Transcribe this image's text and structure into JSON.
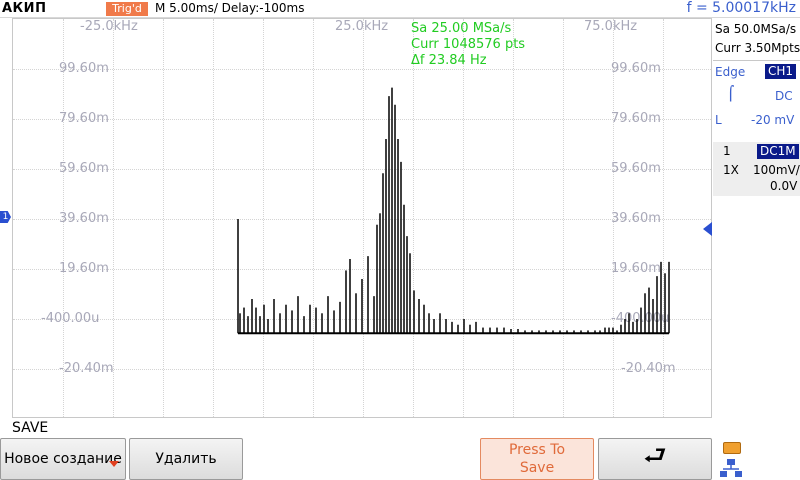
{
  "header": {
    "brand": "АКИП",
    "trig_status": "Trig'd",
    "timebase": "M 5.00ms/ Delay:-100ms",
    "frequency": "f = 5.00017kHz"
  },
  "plot": {
    "x_labels": [
      "-25.0kHz",
      "25.0kHz",
      "75.0kHz"
    ],
    "y_labels_left": [
      "99.60m",
      "79.60m",
      "59.60m",
      "39.60m",
      "19.60m",
      "-400.00u",
      "-20.40m"
    ],
    "y_labels_right": [
      "99.60m",
      "79.60m",
      "59.60m",
      "39.60m",
      "19.60m",
      "-400.00u",
      "-20.40m"
    ],
    "info": {
      "sample_rate": "Sa 25.00 MSa/s",
      "current_points": "Curr 1048576 pts",
      "delta_f": "Δf 23.84 Hz"
    },
    "channel_marker": "1",
    "trace_color": "#000000",
    "info_color": "#22cc22"
  },
  "chart_data": {
    "type": "bar",
    "description_free": true,
    "x_unit": "kHz",
    "xlim": [
      -45.0,
      95.0
    ],
    "ylim": [
      -30.4,
      109.6
    ],
    "y_unit": "m",
    "baseline": -0.4,
    "values": [
      {
        "x": 0.0,
        "y": 39.6
      },
      {
        "x": 0.4,
        "y": 6.6
      },
      {
        "x": 1.2,
        "y": 8.6
      },
      {
        "x": 2.0,
        "y": 5.6
      },
      {
        "x": 2.8,
        "y": 11.6
      },
      {
        "x": 3.6,
        "y": 8.6
      },
      {
        "x": 4.4,
        "y": 5.6
      },
      {
        "x": 5.2,
        "y": 9.6
      },
      {
        "x": 6.0,
        "y": 4.6
      },
      {
        "x": 7.2,
        "y": 11.6
      },
      {
        "x": 8.4,
        "y": 6.6
      },
      {
        "x": 9.6,
        "y": 9.6
      },
      {
        "x": 10.8,
        "y": 7.6
      },
      {
        "x": 12.0,
        "y": 12.6
      },
      {
        "x": 13.2,
        "y": 5.6
      },
      {
        "x": 14.4,
        "y": 9.6
      },
      {
        "x": 15.6,
        "y": 8.6
      },
      {
        "x": 16.8,
        "y": 6.6
      },
      {
        "x": 18.0,
        "y": 12.6
      },
      {
        "x": 19.2,
        "y": 7.6
      },
      {
        "x": 20.4,
        "y": 10.6
      },
      {
        "x": 21.6,
        "y": 21.6
      },
      {
        "x": 22.4,
        "y": 25.6
      },
      {
        "x": 23.6,
        "y": 13.6
      },
      {
        "x": 24.8,
        "y": 18.6
      },
      {
        "x": 26.0,
        "y": 26.6
      },
      {
        "x": 27.2,
        "y": 12.6
      },
      {
        "x": 27.8,
        "y": 37.6
      },
      {
        "x": 28.4,
        "y": 41.6
      },
      {
        "x": 29.0,
        "y": 55.6
      },
      {
        "x": 29.6,
        "y": 67.6
      },
      {
        "x": 30.2,
        "y": 82.6
      },
      {
        "x": 30.8,
        "y": 85.6
      },
      {
        "x": 31.4,
        "y": 79.6
      },
      {
        "x": 32.0,
        "y": 67.6
      },
      {
        "x": 32.6,
        "y": 59.6
      },
      {
        "x": 33.2,
        "y": 44.6
      },
      {
        "x": 33.8,
        "y": 33.6
      },
      {
        "x": 34.4,
        "y": 27.6
      },
      {
        "x": 35.2,
        "y": 14.6
      },
      {
        "x": 36.2,
        "y": 11.6
      },
      {
        "x": 37.2,
        "y": 9.6
      },
      {
        "x": 38.2,
        "y": 6.6
      },
      {
        "x": 39.2,
        "y": 4.6
      },
      {
        "x": 40.4,
        "y": 6.6
      },
      {
        "x": 41.6,
        "y": 4.6
      },
      {
        "x": 42.8,
        "y": 3.6
      },
      {
        "x": 44.0,
        "y": 2.6
      },
      {
        "x": 45.2,
        "y": 4.6
      },
      {
        "x": 46.4,
        "y": 2.6
      },
      {
        "x": 47.6,
        "y": 3.6
      },
      {
        "x": 49.0,
        "y": 1.6
      },
      {
        "x": 50.4,
        "y": 1.6
      },
      {
        "x": 51.8,
        "y": 1.6
      },
      {
        "x": 53.2,
        "y": 1.6
      },
      {
        "x": 54.6,
        "y": 1.1
      },
      {
        "x": 56.0,
        "y": 1.1
      },
      {
        "x": 57.4,
        "y": 0.6
      },
      {
        "x": 58.8,
        "y": 0.6
      },
      {
        "x": 60.2,
        "y": 0.6
      },
      {
        "x": 61.6,
        "y": 0.6
      },
      {
        "x": 63.0,
        "y": 0.6
      },
      {
        "x": 64.4,
        "y": 0.6
      },
      {
        "x": 65.8,
        "y": 0.6
      },
      {
        "x": 67.2,
        "y": 0.6
      },
      {
        "x": 68.6,
        "y": 0.6
      },
      {
        "x": 70.0,
        "y": 0.6
      },
      {
        "x": 71.4,
        "y": 0.6
      },
      {
        "x": 72.4,
        "y": 0.6
      },
      {
        "x": 73.4,
        "y": 1.6
      },
      {
        "x": 74.2,
        "y": 1.6
      },
      {
        "x": 75.0,
        "y": 1.6
      },
      {
        "x": 75.8,
        "y": 0.6
      },
      {
        "x": 76.6,
        "y": 2.6
      },
      {
        "x": 77.4,
        "y": 4.6
      },
      {
        "x": 78.2,
        "y": 6.6
      },
      {
        "x": 79.0,
        "y": 3.6
      },
      {
        "x": 79.8,
        "y": 4.6
      },
      {
        "x": 80.6,
        "y": 8.6
      },
      {
        "x": 81.4,
        "y": 13.6
      },
      {
        "x": 82.2,
        "y": 15.6
      },
      {
        "x": 83.0,
        "y": 11.6
      },
      {
        "x": 83.8,
        "y": 19.6
      },
      {
        "x": 84.6,
        "y": 24.6
      },
      {
        "x": 85.4,
        "y": 20.6
      },
      {
        "x": 86.2,
        "y": 24.6
      }
    ]
  },
  "right_panel": {
    "sample_rate": "Sa 50.0MSa/s",
    "memory": "Curr 3.50Mpts",
    "trigger_type": "Edge",
    "trigger_source": "CH1",
    "coupling": "DC",
    "level_label": "L",
    "level_value": "-20 mV",
    "channel_number": "1",
    "channel_coupling": "DC1M",
    "probe": "1X",
    "scale": "100mV/",
    "offset": "0.0V"
  },
  "bottom": {
    "menu_title": "SAVE",
    "softkeys": {
      "new": "Новое создание",
      "delete": "Удалить",
      "press_to_save_line1": "Press To",
      "press_to_save_line2": "Save",
      "back": "⮐"
    }
  },
  "colors": {
    "trig_badge": "#f07a4a",
    "accent_blue": "#3a5fcd",
    "channel_badge": "#0a1a8a",
    "trigger_marker": "#ff5a00"
  }
}
